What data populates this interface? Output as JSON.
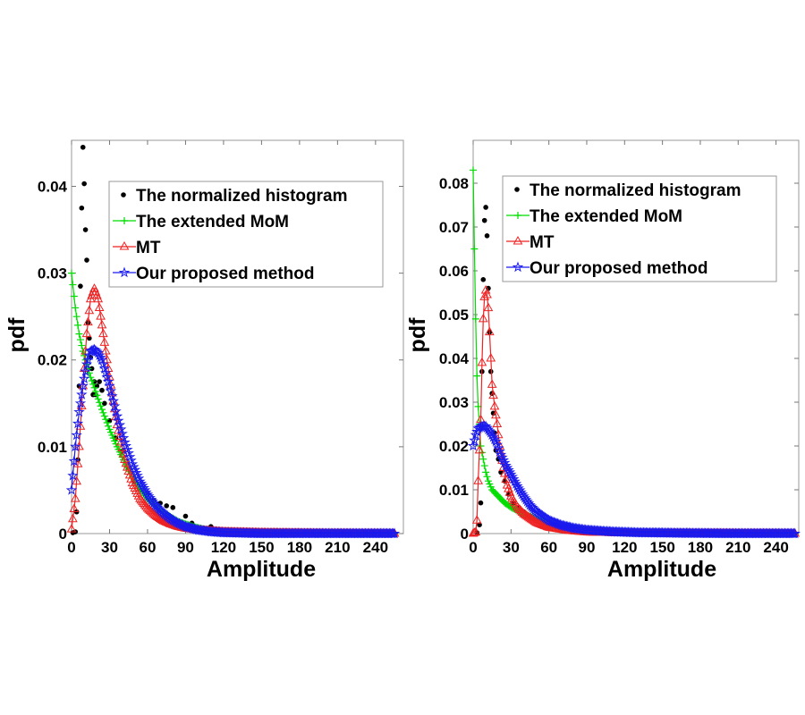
{
  "chart_data": [
    {
      "type": "line",
      "xlabel": "Amplitude",
      "ylabel": "pdf",
      "xlim": [
        0,
        262
      ],
      "ylim": [
        0,
        0.0453
      ],
      "xticks": [
        0,
        30,
        60,
        90,
        120,
        150,
        180,
        210,
        240
      ],
      "xtick_labels": [
        "0",
        "30",
        "60",
        "90",
        "120",
        "150",
        "180",
        "210",
        "240"
      ],
      "yticks": [
        0,
        0.01,
        0.02,
        0.03,
        0.04
      ],
      "ytick_labels": [
        "0",
        "0.01",
        "0.02",
        "0.03",
        "0.04"
      ],
      "grid": false,
      "legend_position": "top-right",
      "series": [
        {
          "name": "The normalized histogram",
          "color": "#000000",
          "marker": "dot",
          "x": [
            1,
            3,
            4,
            5,
            6,
            7,
            8,
            9,
            10,
            11,
            12,
            13,
            14,
            15,
            16,
            17,
            18,
            19,
            20,
            22,
            24,
            26,
            30,
            35,
            40,
            45,
            50,
            55,
            60,
            65,
            70,
            75,
            80,
            90,
            95,
            100,
            110,
            120,
            140,
            160,
            200,
            255
          ],
          "y": [
            0.0001,
            0.0002,
            0.0025,
            0.0085,
            0.017,
            0.0285,
            0.0375,
            0.0445,
            0.0403,
            0.035,
            0.0315,
            0.0243,
            0.0225,
            0.0203,
            0.019,
            0.016,
            0.0175,
            0.016,
            0.017,
            0.0175,
            0.0165,
            0.015,
            0.013,
            0.011,
            0.0095,
            0.0075,
            0.006,
            0.005,
            0.0045,
            0.0038,
            0.0035,
            0.0032,
            0.003,
            0.002,
            0.0012,
            0.0005,
            0.0008,
            0.0003,
            0.0001,
            0,
            0,
            0
          ]
        },
        {
          "name": "The extended MoM",
          "color": "#00dd00",
          "marker": "plus",
          "x": [
            0,
            3,
            6,
            9,
            12,
            15,
            18,
            21,
            24,
            30,
            36,
            42,
            48,
            54,
            60,
            72,
            84,
            96,
            108,
            120,
            150,
            200,
            255
          ],
          "y": [
            0.03,
            0.026,
            0.023,
            0.021,
            0.0195,
            0.018,
            0.0168,
            0.0155,
            0.0143,
            0.012,
            0.01,
            0.0082,
            0.0066,
            0.0052,
            0.004,
            0.0025,
            0.0014,
            0.0008,
            0.0004,
            0.0002,
            5e-05,
            0,
            0
          ]
        },
        {
          "name": "MT",
          "color": "#ee2222",
          "marker": "triangle",
          "x": [
            0,
            3,
            6,
            9,
            12,
            15,
            18,
            21,
            24,
            27,
            30,
            36,
            42,
            48,
            54,
            60,
            66,
            72,
            78,
            84,
            90,
            100,
            110,
            120,
            150,
            200,
            255
          ],
          "y": [
            0.0005,
            0.004,
            0.01,
            0.017,
            0.023,
            0.027,
            0.0282,
            0.027,
            0.024,
            0.021,
            0.018,
            0.0125,
            0.0085,
            0.0058,
            0.004,
            0.0029,
            0.0021,
            0.0015,
            0.0011,
            0.0008,
            0.0006,
            0.0004,
            0.0003,
            0.0002,
            0.0001,
            3e-05,
            0
          ]
        },
        {
          "name": "Our proposed method",
          "color": "#1a1aee",
          "marker": "star",
          "x": [
            0,
            3,
            6,
            9,
            12,
            15,
            18,
            21,
            24,
            27,
            30,
            36,
            42,
            48,
            54,
            60,
            66,
            72,
            78,
            84,
            90,
            100,
            110,
            120,
            150,
            200,
            255
          ],
          "y": [
            0.005,
            0.01,
            0.014,
            0.017,
            0.0195,
            0.021,
            0.0212,
            0.0208,
            0.02,
            0.0185,
            0.017,
            0.0135,
            0.0105,
            0.008,
            0.006,
            0.0045,
            0.0033,
            0.0024,
            0.0017,
            0.0012,
            0.0008,
            0.0004,
            0.0002,
            0.0001,
            0,
            0,
            0
          ]
        }
      ]
    },
    {
      "type": "line",
      "xlabel": "Amplitude",
      "ylabel": "pdf",
      "xlim": [
        0,
        258
      ],
      "ylim": [
        0,
        0.0898
      ],
      "xticks": [
        0,
        30,
        60,
        90,
        120,
        150,
        180,
        210,
        240
      ],
      "xtick_labels": [
        "0",
        "30",
        "60",
        "90",
        "120",
        "150",
        "180",
        "210",
        "240"
      ],
      "yticks": [
        0,
        0.01,
        0.02,
        0.03,
        0.04,
        0.05,
        0.06,
        0.07,
        0.08
      ],
      "ytick_labels": [
        "0",
        "0.01",
        "0.02",
        "0.03",
        "0.04",
        "0.05",
        "0.06",
        "0.07",
        "0.08"
      ],
      "grid": false,
      "legend_position": "top-right",
      "series": [
        {
          "name": "The normalized histogram",
          "color": "#000000",
          "marker": "dot",
          "x": [
            3,
            5,
            6,
            7,
            8,
            9,
            10,
            11,
            12,
            13,
            14,
            15,
            16,
            17,
            18,
            20,
            22,
            25,
            28,
            32,
            36,
            40,
            45,
            50,
            55,
            60,
            70,
            80,
            100,
            130,
            180,
            255
          ],
          "y": [
            0.0002,
            0.002,
            0.007,
            0.037,
            0.058,
            0.0715,
            0.0745,
            0.068,
            0.056,
            0.046,
            0.037,
            0.032,
            0.0275,
            0.023,
            0.019,
            0.017,
            0.014,
            0.012,
            0.009,
            0.007,
            0.006,
            0.005,
            0.004,
            0.003,
            0.002,
            0.0015,
            0.001,
            0.0005,
            0.0002,
            0,
            0,
            0
          ]
        },
        {
          "name": "The extended MoM",
          "color": "#00dd00",
          "marker": "plus",
          "x": [
            0,
            1,
            2,
            3,
            4,
            5,
            6,
            8,
            10,
            12,
            15,
            20,
            25,
            30,
            40,
            50,
            60,
            75,
            90,
            110,
            130,
            160,
            200,
            255
          ],
          "y": [
            0.083,
            0.065,
            0.049,
            0.036,
            0.029,
            0.025,
            0.02,
            0.017,
            0.014,
            0.012,
            0.01,
            0.0085,
            0.007,
            0.006,
            0.0045,
            0.0033,
            0.0024,
            0.0014,
            0.0008,
            0.0004,
            0.0002,
            0.0001,
            0,
            0
          ]
        },
        {
          "name": "MT",
          "color": "#ee2222",
          "marker": "triangle",
          "x": [
            0,
            2,
            3,
            4,
            6,
            7,
            8,
            9,
            10,
            11,
            12,
            13,
            14,
            15,
            17,
            19,
            21,
            24,
            27,
            30,
            35,
            40,
            50,
            60,
            75,
            90,
            120,
            255
          ],
          "y": [
            0,
            0.0003,
            0.003,
            0.012,
            0.026,
            0.039,
            0.049,
            0.054,
            0.0555,
            0.0545,
            0.0515,
            0.046,
            0.04,
            0.034,
            0.029,
            0.025,
            0.02,
            0.015,
            0.011,
            0.0085,
            0.006,
            0.0045,
            0.0025,
            0.0014,
            0.0007,
            0.0003,
            0.0001,
            0
          ]
        },
        {
          "name": "Our proposed method",
          "color": "#1a1aee",
          "marker": "star",
          "x": [
            0,
            2,
            4,
            7,
            10,
            14,
            18,
            22,
            26,
            30,
            35,
            40,
            45,
            50,
            60,
            70,
            80,
            90,
            110,
            130,
            160,
            200,
            255
          ],
          "y": [
            0.02,
            0.0225,
            0.024,
            0.0245,
            0.0245,
            0.023,
            0.021,
            0.018,
            0.0155,
            0.0135,
            0.0108,
            0.0085,
            0.0065,
            0.005,
            0.003,
            0.0019,
            0.0012,
            0.0008,
            0.0004,
            0.0002,
            0.0001,
            0,
            0
          ]
        }
      ]
    }
  ]
}
